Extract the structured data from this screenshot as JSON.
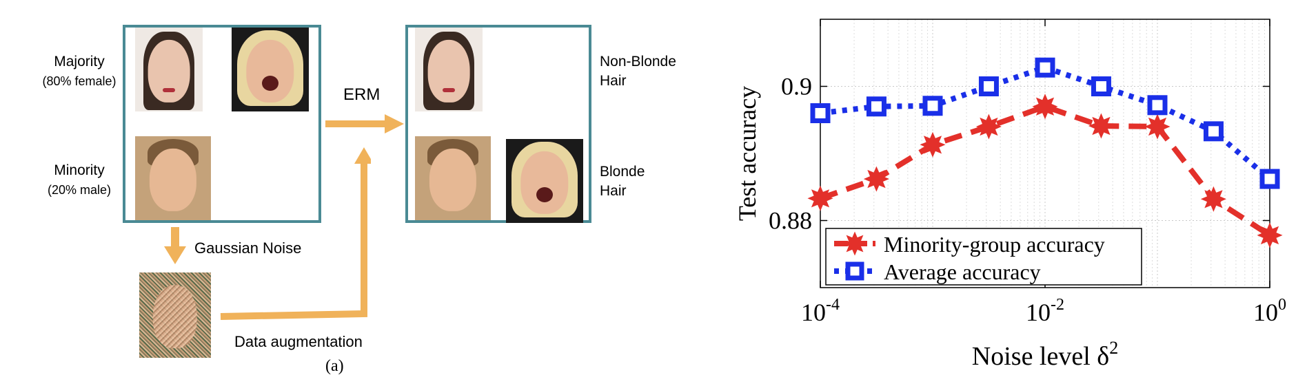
{
  "diagram": {
    "majority_label": "Majority",
    "majority_sub": "(80% female)",
    "minority_label": "Minority",
    "minority_sub": "(20% male)",
    "erm_label": "ERM",
    "gaussian_label": "Gaussian Noise",
    "augmentation_label": "Data augmentation",
    "non_blonde_line1": "Non-Blonde",
    "non_blonde_line2": "Hair",
    "blonde_line1": "Blonde",
    "blonde_line2": "Hair",
    "panel_caption": "(a)",
    "arrow_color": "#f0b25a",
    "box_color": "#4a8a94"
  },
  "chart_data": {
    "type": "line",
    "xlabel": "Noise level δ²",
    "ylabel": "Test accuracy",
    "xscale": "log",
    "xlim": [
      0.0001,
      1
    ],
    "ylim": [
      0.87,
      0.91
    ],
    "xticks": [
      {
        "value": 0.0001,
        "base": "10",
        "exp": "-4"
      },
      {
        "value": 0.01,
        "base": "10",
        "exp": "-2"
      },
      {
        "value": 1,
        "base": "10",
        "exp": "0"
      }
    ],
    "yticks": [
      {
        "value": 0.88,
        "label": "0.88"
      },
      {
        "value": 0.9,
        "label": "0.9"
      }
    ],
    "grid": true,
    "legend_position": "bottom-left",
    "x": [
      0.0001,
      0.000316,
      0.001,
      0.00316,
      0.01,
      0.0316,
      0.1,
      0.316,
      1
    ],
    "series": [
      {
        "name": "Minority-group accuracy",
        "color": "#e3302a",
        "marker": "star",
        "dash": "long",
        "values": [
          0.8833,
          0.8862,
          0.8913,
          0.894,
          0.897,
          0.8941,
          0.894,
          0.8832,
          0.8778
        ]
      },
      {
        "name": "Average accuracy",
        "color": "#1a2fe8",
        "marker": "square",
        "dash": "dot",
        "values": [
          0.896,
          0.897,
          0.8971,
          0.9,
          0.9028,
          0.9,
          0.8972,
          0.8933,
          0.8862
        ]
      }
    ]
  }
}
